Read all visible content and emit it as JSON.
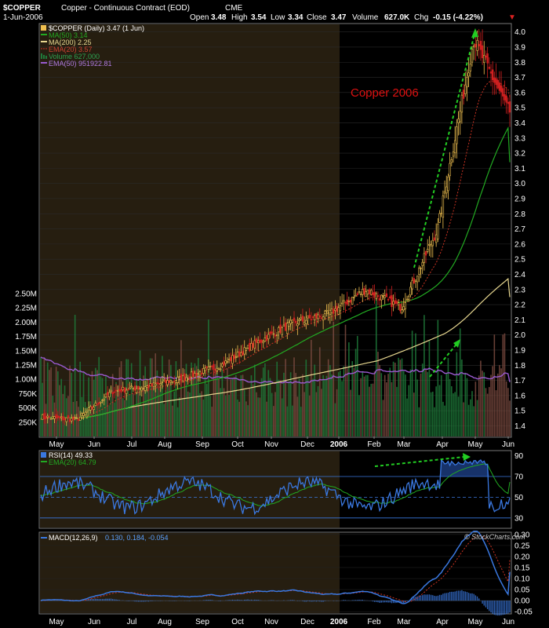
{
  "header": {
    "symbol": "$COPPER",
    "description": "Copper - Continuous Contract (EOD)",
    "exchange": "CME",
    "date": "1-Jun-2006",
    "open_label": "Open",
    "open": "3.48",
    "high_label": "High",
    "high": "3.54",
    "low_label": "Low",
    "low": "3.34",
    "close_label": "Close",
    "close": "3.47",
    "volume_label": "Volume",
    "volume": "627.0K",
    "chg_label": "Chg",
    "chg": "-0.15 (-4.22%)",
    "chg_arrow": "▼"
  },
  "legend": {
    "price": "$COPPER (Daily) 3.47 (1 Jun)",
    "ma50": "MA(50) 3.14",
    "ma200": "MA(200) 2.25",
    "ema20": "EMA(20) 3.57",
    "volume": "Volume 627,000",
    "vol_ema50": "EMA(50) 951922.81"
  },
  "annotation": {
    "text": "Copper 2006"
  },
  "rsi_legend": {
    "rsi": "RSI(14) 49.33",
    "ema": "EMA(20) 64.79"
  },
  "macd_legend": {
    "macd": "MACD(12,26,9)",
    "values": "0.130, 0.184, -0.054"
  },
  "watermark": "© StockCharts.com",
  "colors": {
    "up": "#f0c050",
    "down": "#d02020",
    "volume_up": "#1f7a3a",
    "volume_down": "#7a4a40",
    "ma50": "#22aa22",
    "ma200": "#e8d890",
    "ema20": "#cc3322",
    "vol_ema": "#9a5ad0",
    "rsi": "#3a78e0",
    "annotation": "#dd1111",
    "arrow": "#22cc22",
    "shade": "#261e10"
  },
  "chart_data": [
    {
      "type": "candlestick",
      "title": "$COPPER (Daily)",
      "x_tick_labels": [
        "May",
        "Jun",
        "Jul",
        "Aug",
        "Sep",
        "Oct",
        "Nov",
        "Dec",
        "2006",
        "Feb",
        "Mar",
        "Apr",
        "May",
        "Jun"
      ],
      "y_tick_labels": [
        "1.4",
        "1.5",
        "1.6",
        "1.7",
        "1.8",
        "1.9",
        "2.0",
        "2.1",
        "2.2",
        "2.3",
        "2.4",
        "2.5",
        "2.6",
        "2.7",
        "2.8",
        "2.9",
        "3.0",
        "3.1",
        "3.2",
        "3.3",
        "3.4",
        "3.5",
        "3.6",
        "3.7",
        "3.8",
        "3.9",
        "4.0"
      ],
      "ylim": [
        1.33,
        4.05
      ],
      "price_anchors": [
        {
          "date": "May-05",
          "close": 1.46
        },
        {
          "date": "Jun-05",
          "close": 1.44
        },
        {
          "date": "Jul-05",
          "close": 1.63
        },
        {
          "date": "Aug-05",
          "close": 1.66
        },
        {
          "date": "Sep-05",
          "close": 1.72
        },
        {
          "date": "Oct-05",
          "close": 1.8
        },
        {
          "date": "Nov-05",
          "close": 1.95
        },
        {
          "date": "Dec-05",
          "close": 2.08
        },
        {
          "date": "Jan-06",
          "close": 2.14
        },
        {
          "date": "Feb-06",
          "close": 2.3
        },
        {
          "date": "Mar-06",
          "close": 2.18
        },
        {
          "date": "Apr-06",
          "close": 2.7
        },
        {
          "date": "May-06",
          "close": 3.95
        },
        {
          "date": "Jun-06",
          "close": 3.47
        }
      ],
      "series": [
        {
          "name": "MA(50)",
          "last": 3.14
        },
        {
          "name": "MA(200)",
          "last": 2.25
        },
        {
          "name": "EMA(20)",
          "last": 3.57
        }
      ]
    },
    {
      "type": "bar",
      "title": "Volume",
      "y_tick_labels": [
        "250K",
        "500K",
        "750K",
        "1.00M",
        "1.25M",
        "1.50M",
        "1.75M",
        "2.00M",
        "2.25M",
        "2.50M"
      ],
      "ylim": [
        0,
        2500000
      ],
      "series": [
        {
          "name": "Volume",
          "last": 627000
        },
        {
          "name": "EMA(50)",
          "last": 951922.81
        }
      ]
    },
    {
      "type": "line",
      "title": "RSI(14)",
      "y_tick_labels": [
        "30",
        "50",
        "70",
        "90"
      ],
      "ylim": [
        20,
        95
      ],
      "reference_lines": [
        70,
        50,
        30
      ],
      "series": [
        {
          "name": "RSI(14)",
          "last": 49.33
        },
        {
          "name": "EMA(20)",
          "last": 64.79
        }
      ]
    },
    {
      "type": "line",
      "title": "MACD(12,26,9)",
      "y_tick_labels": [
        "-0.05",
        "0.00",
        "0.05",
        "0.10",
        "0.15",
        "0.20",
        "0.25",
        "0.30"
      ],
      "ylim": [
        -0.06,
        0.31
      ],
      "series": [
        {
          "name": "MACD",
          "last": 0.13
        },
        {
          "name": "Signal",
          "last": 0.184
        },
        {
          "name": "Histogram",
          "last": -0.054
        }
      ]
    }
  ]
}
